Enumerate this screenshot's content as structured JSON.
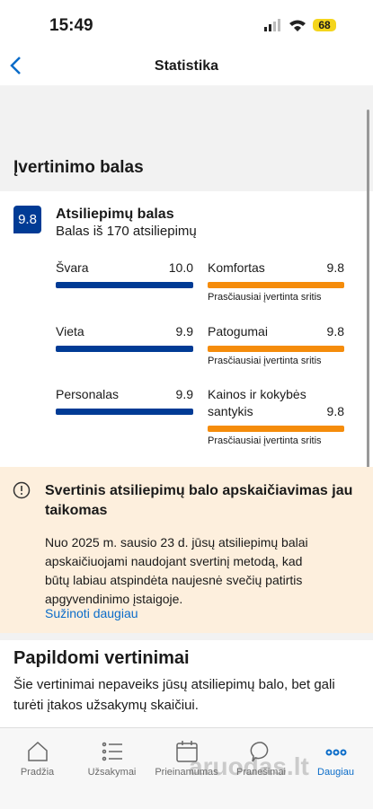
{
  "status_bar": {
    "time": "15:49",
    "battery": "68"
  },
  "nav": {
    "title": "Statistika"
  },
  "section_title": "Įvertinimo balas",
  "score": {
    "badge": "9.8",
    "title": "Atsiliepimų balas",
    "subtitle": "Balas iš 170 atsiliepimų"
  },
  "ratings": [
    {
      "label": "Švara",
      "value": "10.0"
    },
    {
      "label": "Komfortas",
      "value": "9.8",
      "note": "Prasčiausiai įvertinta sritis"
    },
    {
      "label": "Vieta",
      "value": "9.9"
    },
    {
      "label": "Patogumai",
      "value": "9.8",
      "note": "Prasčiausiai įvertinta sritis"
    },
    {
      "label": "Personalas",
      "value": "9.9"
    },
    {
      "label": "Kainos ir kokybės santykis",
      "value": "9.8",
      "note": "Prasčiausiai įvertinta sritis"
    }
  ],
  "notice": {
    "title": "Svertinis atsiliepimų balo apskaičiavimas jau taikomas",
    "body": "Nuo 2025 m. sausio 23 d. jūsų atsiliepimų balai apskaičiuojami naudojant svertinį metodą, kad būtų labiau atspindėta naujesnė svečių patirtis apgyvendinimo įstaigoje.",
    "link": "Sužinoti daugiau"
  },
  "extra": {
    "title": "Papildomi vertinimai",
    "body": "Šie vertinimai nepaveiks jūsų atsiliepimų balo, bet gali turėti įtakos užsakymų skaičiui."
  },
  "tabs": [
    "Pradžia",
    "Užsakymai",
    "Prieinamumas",
    "Pranešimai",
    "Daugiau"
  ],
  "watermark": "aruodas.lt"
}
